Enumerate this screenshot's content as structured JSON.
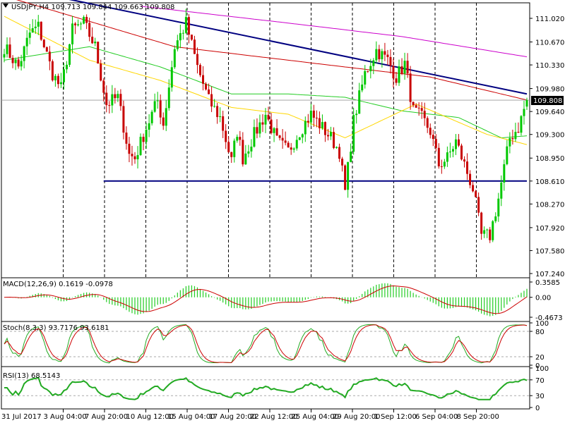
{
  "colors": {
    "bull": "#00c800",
    "bear": "#c80000",
    "ma_red": "#cc0000",
    "ma_yellow": "#ffd700",
    "ma_green": "#22cc22",
    "ma_magenta": "#cc00cc",
    "trendline": "#000080",
    "macd_hist": "#22cc22",
    "macd_signal": "#cc0000",
    "stoch_main": "#22aa22",
    "stoch_signal": "#cc0000",
    "rsi": "#22aa22"
  },
  "main_panel": {
    "header_icon": "triangle-down-icon",
    "header": "USDJPY,H4  109.713 109.844 109.663 109.808",
    "price_tag": "109.808",
    "y_ticks": [
      "111.020",
      "110.670",
      "110.330",
      "109.980",
      "109.640",
      "109.300",
      "108.950",
      "108.610",
      "108.270",
      "107.920",
      "107.580",
      "107.240"
    ]
  },
  "macd_panel": {
    "header": "MACD(12,26,9) 0.1619 -0.0978",
    "y_ticks": [
      "0.3585",
      "0.00",
      "-0.4673"
    ]
  },
  "stoch_panel": {
    "header": "Stoch(8,3,3) 93.7176 93.6181",
    "y_ticks": [
      "100",
      "80",
      "20",
      "0"
    ]
  },
  "rsi_panel": {
    "header": "RSI(13) 68.5143",
    "y_ticks": [
      "100",
      "70",
      "30",
      "0"
    ]
  },
  "x_labels": [
    "31 Jul 2017",
    "3 Aug 04:00",
    "7 Aug 20:00",
    "10 Aug 12:00",
    "15 Aug 04:00",
    "17 Aug 20:00",
    "22 Aug 12:00",
    "25 Aug 04:00",
    "29 Aug 20:00",
    "1 Sep 12:00",
    "6 Sep 04:00",
    "8 Sep 20:00"
  ],
  "chart_data": {
    "type": "candlestick",
    "symbol": "USDJPY",
    "timeframe": "H4",
    "last_ohlc": {
      "open": 109.713,
      "high": 109.844,
      "low": 109.663,
      "close": 109.808
    },
    "ylim": [
      107.24,
      111.2
    ],
    "close_anchors": [
      [
        0,
        110.6
      ],
      [
        5,
        110.3
      ],
      [
        9,
        110.8
      ],
      [
        12,
        110.9
      ],
      [
        17,
        110.2
      ],
      [
        20,
        109.98
      ],
      [
        24,
        110.85
      ],
      [
        28,
        110.95
      ],
      [
        32,
        110.6
      ],
      [
        36,
        109.75
      ],
      [
        40,
        109.85
      ],
      [
        44,
        109.0
      ],
      [
        46,
        108.95
      ],
      [
        50,
        109.4
      ],
      [
        54,
        109.8
      ],
      [
        56,
        109.45
      ],
      [
        60,
        110.6
      ],
      [
        64,
        110.95
      ],
      [
        68,
        110.3
      ],
      [
        72,
        109.8
      ],
      [
        76,
        109.55
      ],
      [
        80,
        108.9
      ],
      [
        82,
        109.35
      ],
      [
        84,
        108.95
      ],
      [
        88,
        109.3
      ],
      [
        92,
        109.6
      ],
      [
        96,
        109.2
      ],
      [
        100,
        109.05
      ],
      [
        104,
        109.35
      ],
      [
        108,
        109.6
      ],
      [
        112,
        109.4
      ],
      [
        115,
        109.25
      ],
      [
        118,
        109.05
      ],
      [
        120,
        108.45
      ],
      [
        123,
        109.5
      ],
      [
        127,
        110.2
      ],
      [
        131,
        110.55
      ],
      [
        135,
        110.4
      ],
      [
        138,
        110.15
      ],
      [
        141,
        110.35
      ],
      [
        144,
        109.65
      ],
      [
        147,
        109.55
      ],
      [
        150,
        109.35
      ],
      [
        153,
        108.85
      ],
      [
        156,
        108.95
      ],
      [
        159,
        109.2
      ],
      [
        162,
        108.85
      ],
      [
        165,
        108.5
      ],
      [
        168,
        107.8
      ],
      [
        171,
        107.8
      ],
      [
        174,
        108.35
      ],
      [
        176,
        108.8
      ],
      [
        178,
        109.25
      ],
      [
        181,
        109.4
      ],
      [
        184,
        109.81
      ]
    ],
    "ma_red": [
      [
        0,
        111.35
      ],
      [
        60,
        110.6
      ],
      [
        120,
        110.3
      ],
      [
        150,
        110.15
      ],
      [
        184,
        109.81
      ]
    ],
    "ma_magenta": [
      [
        48,
        111.2
      ],
      [
        100,
        110.95
      ],
      [
        140,
        110.75
      ],
      [
        184,
        110.45
      ]
    ],
    "ma_yellow": [
      [
        0,
        111.05
      ],
      [
        30,
        110.4
      ],
      [
        55,
        110.1
      ],
      [
        80,
        109.7
      ],
      [
        100,
        109.6
      ],
      [
        120,
        109.25
      ],
      [
        145,
        109.75
      ],
      [
        170,
        109.3
      ],
      [
        184,
        109.15
      ]
    ],
    "ma_green": [
      [
        0,
        110.4
      ],
      [
        30,
        110.6
      ],
      [
        55,
        110.3
      ],
      [
        80,
        109.9
      ],
      [
        100,
        109.9
      ],
      [
        120,
        109.85
      ],
      [
        140,
        109.65
      ],
      [
        160,
        109.55
      ],
      [
        175,
        109.25
      ],
      [
        184,
        109.28
      ]
    ],
    "resistance_line": [
      [
        0,
        111.5
      ],
      [
        184,
        109.9
      ]
    ],
    "support_level": 108.61,
    "macd_value": 0.1619,
    "macd_signal": -0.0978,
    "macd_range": [
      -0.4673,
      0.3585
    ],
    "stoch_main": 93.7176,
    "stoch_signal": 93.6181,
    "rsi": 68.5143
  }
}
